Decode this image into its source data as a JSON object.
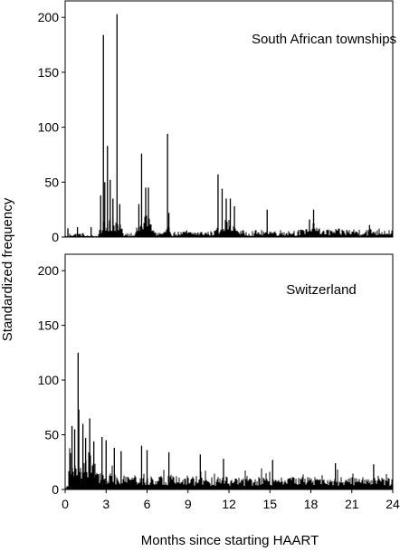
{
  "figure": {
    "ylabel": "Standardized frequency",
    "xlabel": "Months since starting HAART"
  },
  "chart_data": [
    {
      "type": "bar",
      "panel": "top",
      "title": "South African townships",
      "xlabel": "Months since starting HAART",
      "ylabel": "Standardized frequency",
      "xlim": [
        0,
        24
      ],
      "ylim": [
        0,
        215
      ],
      "xticks": [
        0,
        3,
        6,
        9,
        12,
        15,
        18,
        21,
        24
      ],
      "yticks": [
        0,
        50,
        100,
        150,
        200
      ],
      "grid": false,
      "legend": "none",
      "color": "#000000",
      "spikes": [
        {
          "x": 2.8,
          "y": 184
        },
        {
          "x": 3.1,
          "y": 83
        },
        {
          "x": 3.8,
          "y": 203
        },
        {
          "x": 2.6,
          "y": 38
        },
        {
          "x": 2.9,
          "y": 50
        },
        {
          "x": 3.3,
          "y": 52
        },
        {
          "x": 3.5,
          "y": 35
        },
        {
          "x": 4.0,
          "y": 30
        },
        {
          "x": 5.6,
          "y": 76
        },
        {
          "x": 5.9,
          "y": 45
        },
        {
          "x": 6.1,
          "y": 45
        },
        {
          "x": 5.4,
          "y": 30
        },
        {
          "x": 7.5,
          "y": 94
        },
        {
          "x": 7.6,
          "y": 22
        },
        {
          "x": 11.2,
          "y": 57
        },
        {
          "x": 11.5,
          "y": 44
        },
        {
          "x": 11.8,
          "y": 35
        },
        {
          "x": 12.1,
          "y": 35
        },
        {
          "x": 12.4,
          "y": 28
        },
        {
          "x": 14.8,
          "y": 25
        },
        {
          "x": 18.2,
          "y": 25
        },
        {
          "x": 17.9,
          "y": 16
        },
        {
          "x": 22.3,
          "y": 11
        },
        {
          "x": 0.2,
          "y": 8
        },
        {
          "x": 0.9,
          "y": 9
        },
        {
          "x": 1.9,
          "y": 9
        },
        {
          "x": 8.9,
          "y": 6
        }
      ],
      "clusters": [
        {
          "from": 2.5,
          "to": 4.2,
          "level": 15
        },
        {
          "from": 5.2,
          "to": 6.6,
          "level": 14
        },
        {
          "from": 7.2,
          "to": 7.8,
          "level": 7
        },
        {
          "from": 10.9,
          "to": 12.8,
          "level": 11
        },
        {
          "from": 17.4,
          "to": 19.0,
          "level": 8
        },
        {
          "from": 14.6,
          "to": 15.0,
          "level": 4
        }
      ],
      "background_level": 2.5,
      "background_rise_to": 6
    },
    {
      "type": "bar",
      "panel": "bottom",
      "title": "Switzerland",
      "xlabel": "Months since starting HAART",
      "ylabel": "Standardized frequency",
      "xlim": [
        0,
        24
      ],
      "ylim": [
        0,
        215
      ],
      "xticks": [
        0,
        3,
        6,
        9,
        12,
        15,
        18,
        21,
        24
      ],
      "yticks": [
        0,
        50,
        100,
        150,
        200
      ],
      "grid": false,
      "legend": "none",
      "color": "#000000",
      "spikes": [
        {
          "x": 0.95,
          "y": 125
        },
        {
          "x": 1.0,
          "y": 73
        },
        {
          "x": 0.5,
          "y": 58
        },
        {
          "x": 1.3,
          "y": 60
        },
        {
          "x": 1.5,
          "y": 47
        },
        {
          "x": 1.8,
          "y": 65
        },
        {
          "x": 0.7,
          "y": 55
        },
        {
          "x": 2.1,
          "y": 44
        },
        {
          "x": 2.7,
          "y": 48
        },
        {
          "x": 3.0,
          "y": 45
        },
        {
          "x": 3.6,
          "y": 38
        },
        {
          "x": 4.1,
          "y": 35
        },
        {
          "x": 5.6,
          "y": 40
        },
        {
          "x": 6.0,
          "y": 36
        },
        {
          "x": 7.6,
          "y": 34
        },
        {
          "x": 9.9,
          "y": 32
        },
        {
          "x": 11.6,
          "y": 28
        },
        {
          "x": 15.2,
          "y": 27
        },
        {
          "x": 19.8,
          "y": 24
        },
        {
          "x": 22.6,
          "y": 23
        }
      ],
      "noise_start": 14,
      "noise_end": 9,
      "noise_peak_extra": 10
    }
  ]
}
